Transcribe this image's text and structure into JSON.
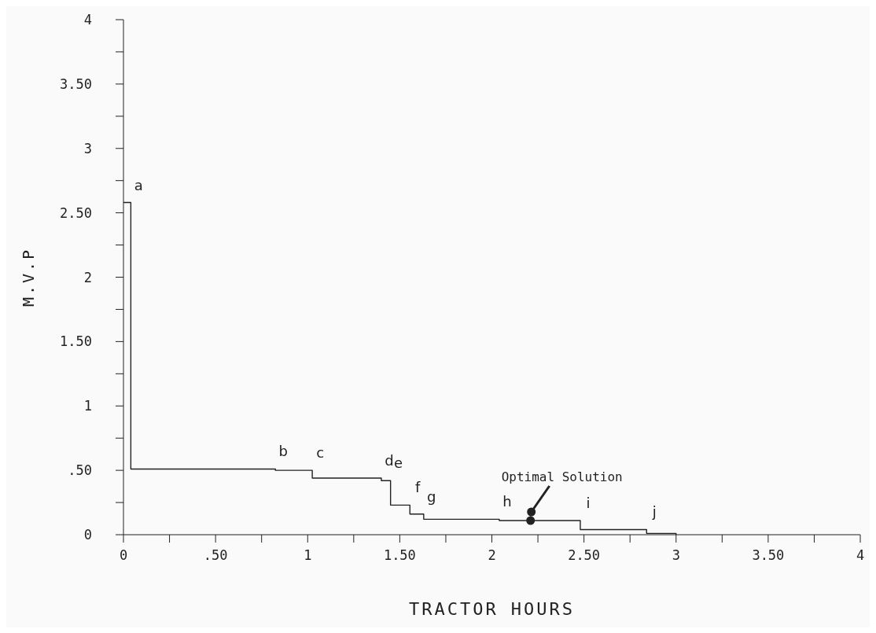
{
  "chart_data": {
    "type": "step",
    "xlabel": "TRACTOR HOURS",
    "ylabel": "M.V.P",
    "x": [
      0,
      0.04,
      0.825,
      1.025,
      1.4,
      1.45,
      1.555,
      1.63,
      2.04,
      2.48,
      2.84,
      3.0
    ],
    "values": [
      2.58,
      0.51,
      0.5,
      0.44,
      0.42,
      0.23,
      0.16,
      0.12,
      0.11,
      0.04,
      0.01,
      0
    ],
    "color": "#222222",
    "marker": "none",
    "line_style": "solid",
    "xlim": [
      0,
      4
    ],
    "ylim": [
      0,
      4
    ],
    "xticks": [
      0,
      {
        "value": 0.25,
        "label": null
      },
      {
        "value": 0.5,
        "label": ".50"
      },
      {
        "value": 0.75,
        "label": null
      },
      1,
      {
        "value": 1.25,
        "label": null
      },
      {
        "value": 1.5,
        "label": "1.50"
      },
      {
        "value": 1.75,
        "label": null
      },
      2,
      {
        "value": 2.25,
        "label": null
      },
      {
        "value": 2.5,
        "label": "2.50"
      },
      {
        "value": 2.75,
        "label": null
      },
      3,
      {
        "value": 3.25,
        "label": null
      },
      {
        "value": 3.5,
        "label": "3.50"
      },
      {
        "value": 3.75,
        "label": null
      },
      4
    ],
    "yticks": [
      0,
      {
        "value": 0.25,
        "label": null
      },
      {
        "value": 0.5,
        "label": ".50"
      },
      {
        "value": 0.75,
        "label": null
      },
      1,
      {
        "value": 1.25,
        "label": null
      },
      {
        "value": 1.5,
        "label": "1.50"
      },
      {
        "value": 1.75,
        "label": null
      },
      2,
      {
        "value": 2.25,
        "label": null
      },
      {
        "value": 2.5,
        "label": "2.50"
      },
      {
        "value": 2.75,
        "label": null
      },
      3,
      {
        "value": 3.25,
        "label": null
      },
      {
        "value": 3.5,
        "label": "3.50"
      },
      {
        "value": 3.75,
        "label": null
      },
      4
    ],
    "annotations": [
      {
        "text": "a",
        "x": 0.04,
        "y": 2.58
      },
      {
        "text": "b",
        "x": 0.825,
        "y": 0.51
      },
      {
        "text": "c",
        "x": 1.025,
        "y": 0.5
      },
      {
        "text": "d",
        "x": 1.4,
        "y": 0.44
      },
      {
        "text": "e",
        "x": 1.45,
        "y": 0.42
      },
      {
        "text": "f",
        "x": 1.555,
        "y": 0.23
      },
      {
        "text": "g",
        "x": 1.63,
        "y": 0.16
      },
      {
        "text": "h",
        "x": 2.04,
        "y": 0.12
      },
      {
        "text": "i",
        "x": 2.48,
        "y": 0.11
      },
      {
        "text": "j",
        "x": 2.84,
        "y": 0.04
      },
      {
        "text": "Optimal Solution",
        "x": 2.21,
        "y": 0.11
      }
    ]
  }
}
